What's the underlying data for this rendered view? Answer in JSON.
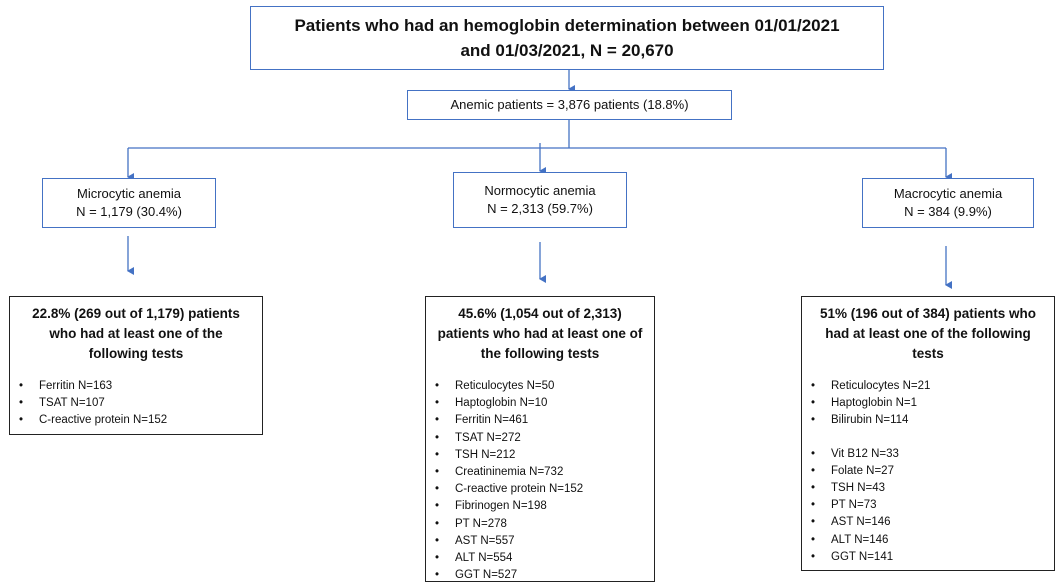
{
  "header": {
    "title_lines": [
      "Patients who had an hemoglobin determination between 01/01/2021",
      "and 01/03/2021, N = 20,670"
    ]
  },
  "anemic": {
    "label": "Anemic patients  = 3,876 patients (18.8%)"
  },
  "groups": [
    {
      "lines": [
        "Microcytic anemia",
        "N = 1,179 (30.4%)"
      ],
      "result": {
        "title_lines": [
          "22.8% (269 out of 1,179) patients",
          "who had at least one of the",
          "following tests"
        ],
        "item_groups": [
          [
            "Ferritin N=163",
            "TSAT N=107",
            "C-reactive protein N=152"
          ]
        ]
      }
    },
    {
      "lines": [
        "Normocytic anemia",
        "N = 2,313 (59.7%)"
      ],
      "result": {
        "title_lines": [
          "45.6% (1,054 out of 2,313)",
          "patients who had at least one of",
          "the following tests"
        ],
        "item_groups": [
          [
            "Reticulocytes N=50",
            "Haptoglobin N=10",
            "Ferritin N=461",
            "TSAT N=272",
            "TSH N=212",
            "Creatininemia N=732",
            "C-reactive protein N=152",
            "Fibrinogen N=198",
            "PT N=278",
            "AST N=557",
            "ALT N=554",
            "GGT N=527"
          ]
        ]
      }
    },
    {
      "lines": [
        "Macrocytic anemia",
        "N = 384 (9.9%)"
      ],
      "result": {
        "title_lines": [
          "51% (196 out of 384) patients who",
          "had at least one of the following",
          "tests"
        ],
        "item_groups": [
          [
            "Reticulocytes N=21",
            "Haptoglobin N=1",
            "Bilirubin N=114"
          ],
          [
            "Vit B12 N=33",
            "Folate N=27",
            "TSH N=43",
            "PT N=73",
            "AST N=146",
            "ALT N=146",
            "GGT N=141"
          ]
        ]
      }
    }
  ]
}
